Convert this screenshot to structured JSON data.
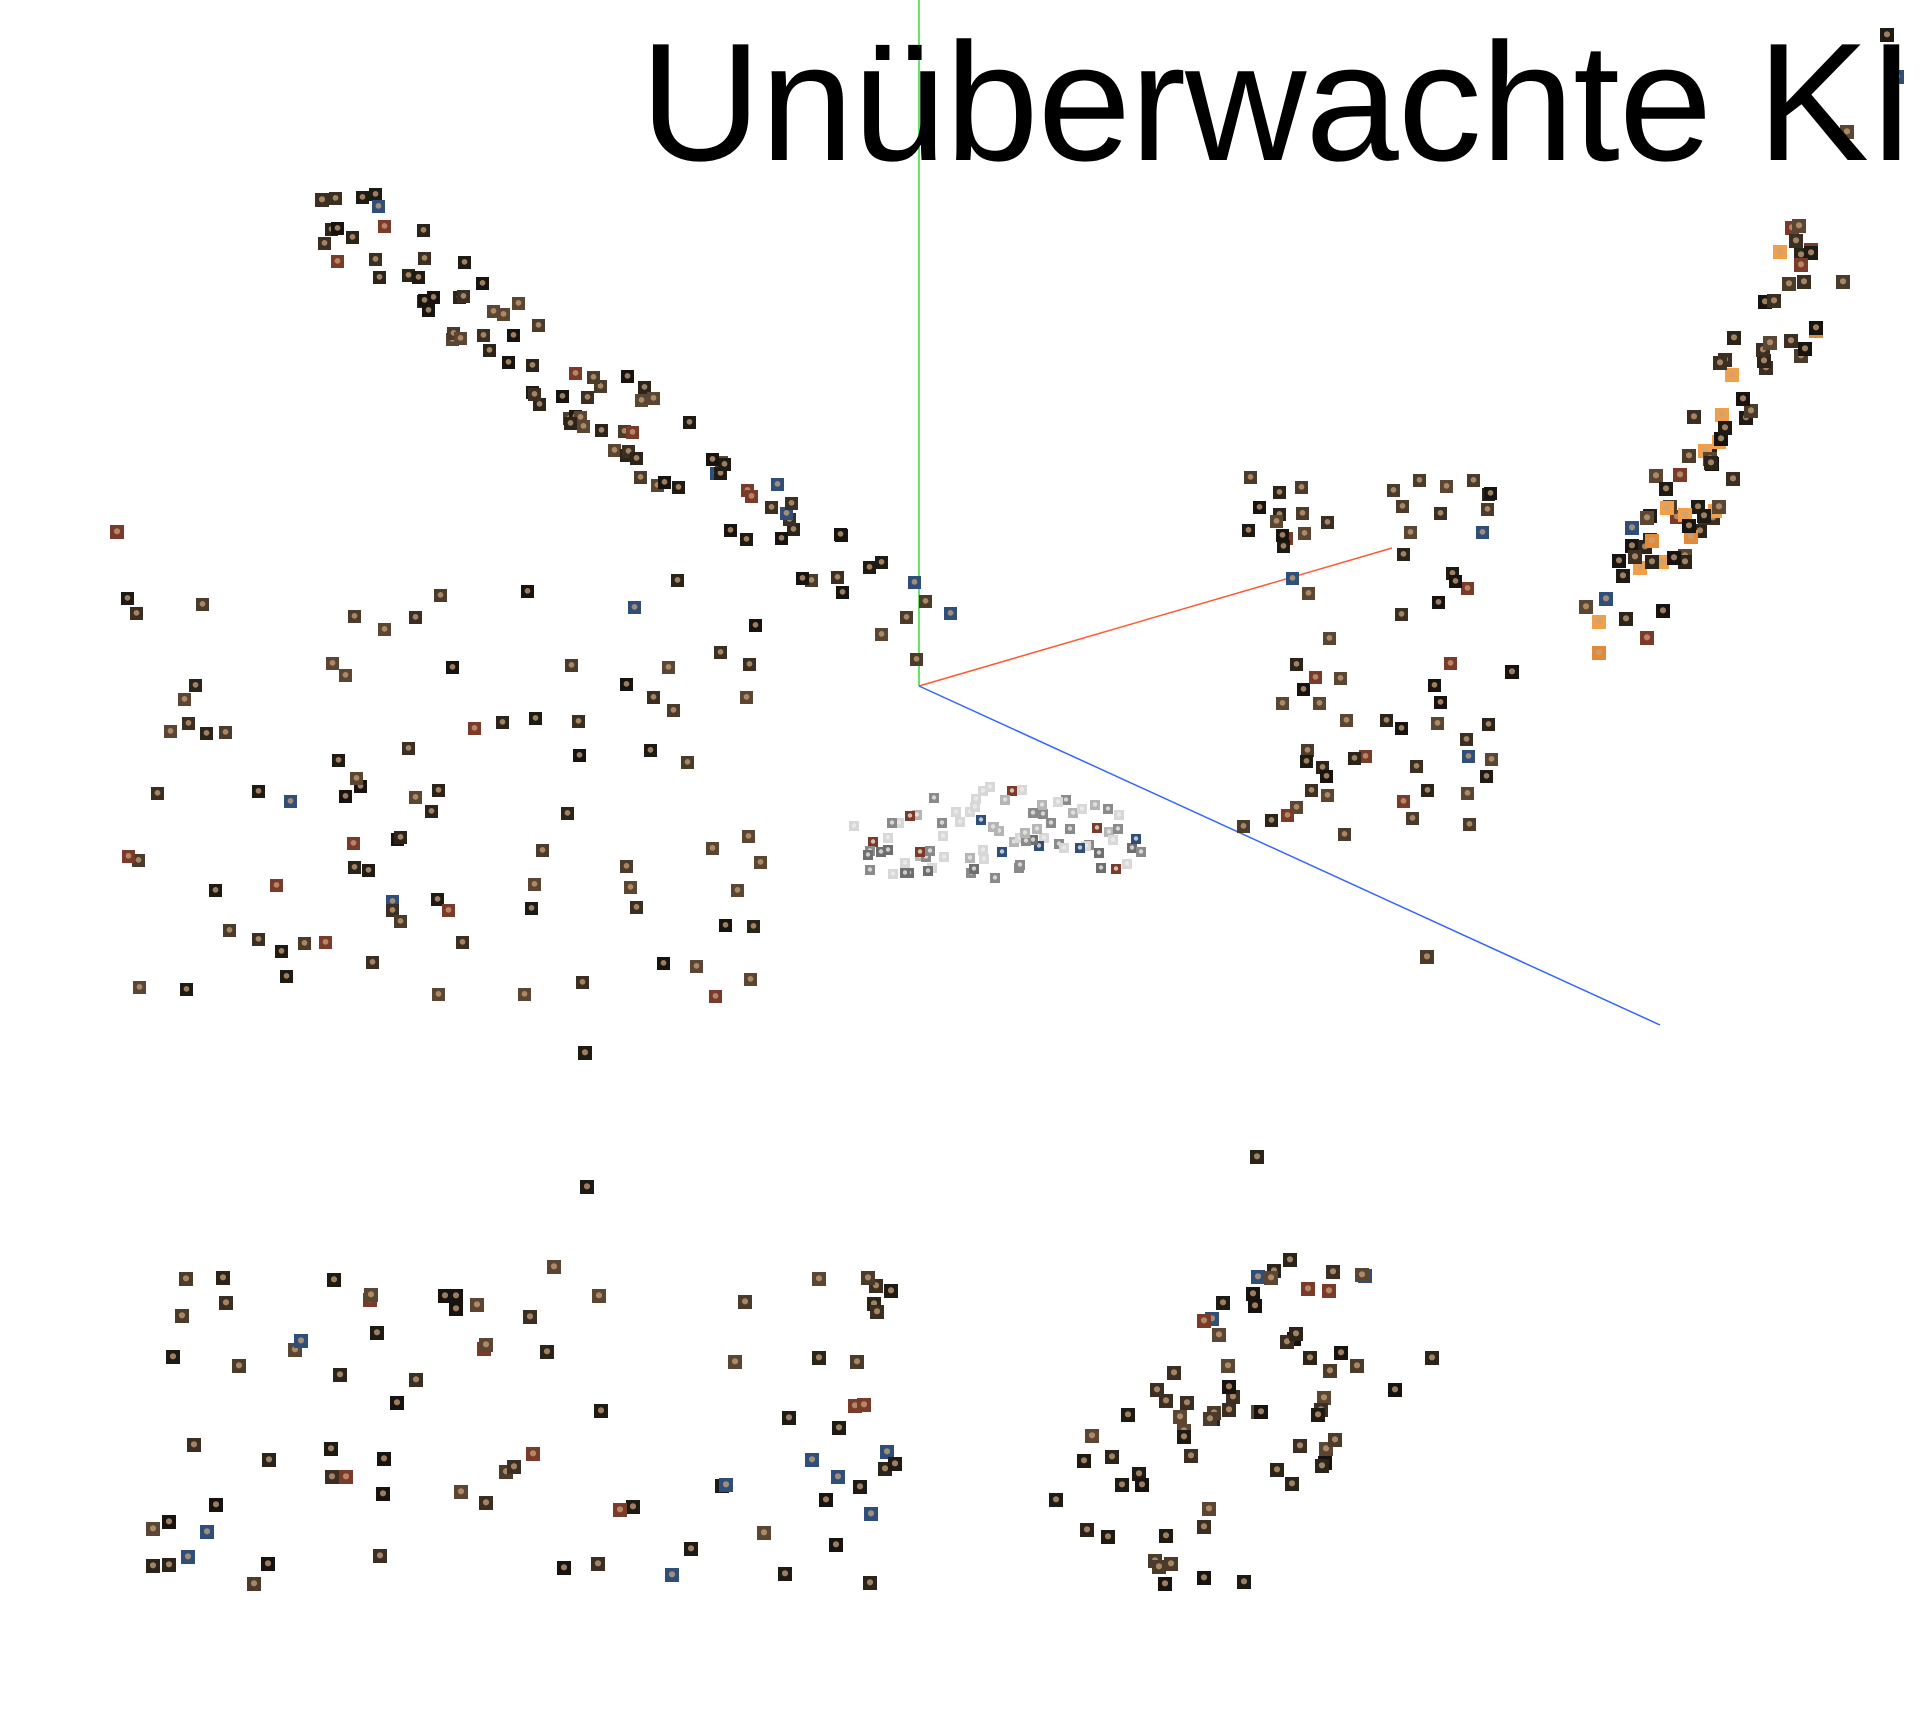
{
  "page": {
    "title": "Unüberwachte KI",
    "background": "#ffffff"
  },
  "axes": {
    "x_color": "#ff5a36",
    "y_color": "#33dd33",
    "z_color": "#3366ff"
  },
  "thumbnail_palette": [
    "#1e1a14",
    "#2b241b",
    "#3a2f22",
    "#4a3b2a",
    "#171310",
    "#5a4632",
    "#6e6e6e",
    "#8a8a8a",
    "#b5b5b5",
    "#e28a3a",
    "#f0a04b",
    "#c9a27a",
    "#d8d8d8",
    "#2f4f7a",
    "#7a3b2b"
  ],
  "chart_data": {
    "type": "scatter",
    "description_visible": false
  }
}
